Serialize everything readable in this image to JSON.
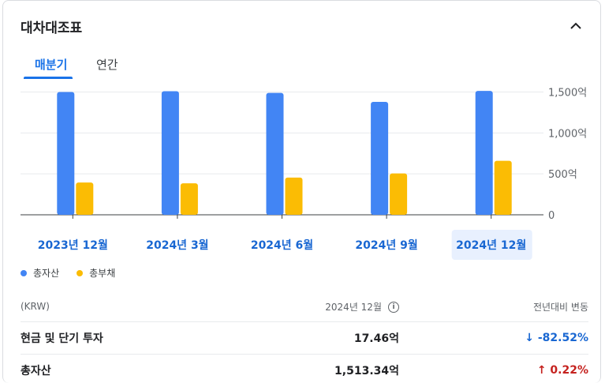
{
  "title": "대차대조표",
  "tabs": [
    {
      "label": "매분기",
      "active": true
    },
    {
      "label": "연간",
      "active": false
    }
  ],
  "icons": {
    "collapse": "chevron-up-icon",
    "info": "info-circle-icon"
  },
  "colors": {
    "total_assets": "#4285f4",
    "total_liabilities": "#fbbc04",
    "accent": "#1a73e8",
    "negative": "#1967d2",
    "positive": "#c5221f"
  },
  "chart_data": {
    "type": "bar",
    "categories": [
      "2023년 12월",
      "2024년 3월",
      "2024년 6월",
      "2024년 9월",
      "2024년 12월"
    ],
    "selected_category": "2024년 12월",
    "series": [
      {
        "name": "총자산",
        "values": [
          1500,
          1510,
          1490,
          1380,
          1513.34
        ]
      },
      {
        "name": "총부채",
        "values": [
          395,
          385,
          455,
          505,
          660
        ]
      }
    ],
    "yticks": [
      0,
      500,
      1000,
      1500
    ],
    "ytick_labels": [
      "0",
      "500억",
      "1,000억",
      "1,500억"
    ],
    "ylim": [
      0,
      1650
    ],
    "grid": true,
    "legend": "bottom-left",
    "unit": "억 KRW"
  },
  "table": {
    "headers": {
      "label": "(KRW)",
      "period": "2024년 12월",
      "change": "전년대비 변동"
    },
    "rows": [
      {
        "label": "현금 및 단기 투자",
        "value": "17.46억",
        "change": "-82.52%",
        "direction": "down",
        "arrow": "↓"
      },
      {
        "label": "총자산",
        "value": "1,513.34억",
        "change": "0.22%",
        "direction": "up",
        "arrow": "↑"
      }
    ]
  }
}
